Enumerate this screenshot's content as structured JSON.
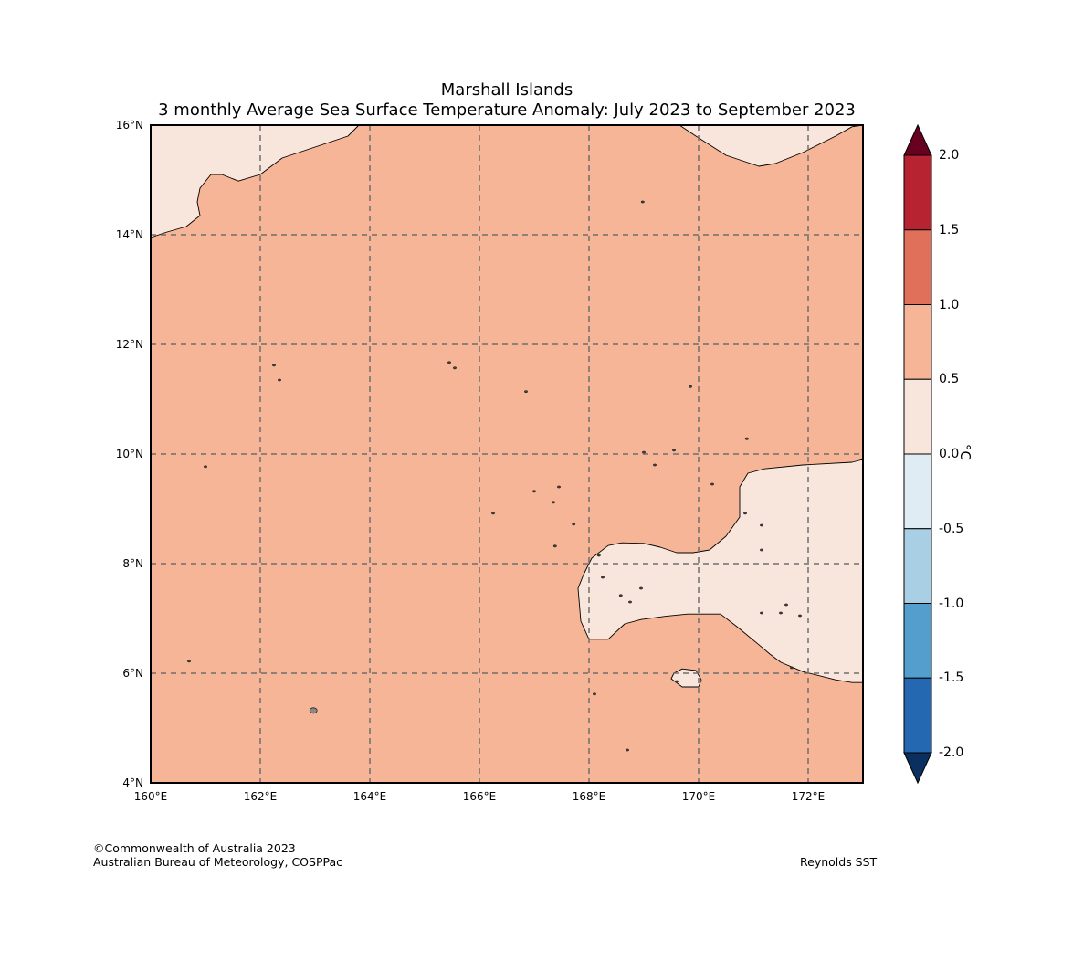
{
  "title": {
    "line1": "Marshall Islands",
    "line2": "3 monthly Average Sea Surface Temperature Anomaly: July 2023 to September 2023"
  },
  "map": {
    "lon_range": [
      160,
      173
    ],
    "lat_range": [
      4,
      16
    ],
    "lon_ticks": [
      {
        "value": 160,
        "label": "160°E"
      },
      {
        "value": 162,
        "label": "162°E"
      },
      {
        "value": 164,
        "label": "164°E"
      },
      {
        "value": 166,
        "label": "166°E"
      },
      {
        "value": 168,
        "label": "168°E"
      },
      {
        "value": 170,
        "label": "170°E"
      },
      {
        "value": 172,
        "label": "172°E"
      }
    ],
    "lat_ticks": [
      {
        "value": 4,
        "label": "4°N"
      },
      {
        "value": 6,
        "label": "6°N"
      },
      {
        "value": 8,
        "label": "8°N"
      },
      {
        "value": 10,
        "label": "10°N"
      },
      {
        "value": 12,
        "label": "12°N"
      },
      {
        "value": 14,
        "label": "14°N"
      },
      {
        "value": 16,
        "label": "16°N"
      }
    ],
    "gridlines": "dashed",
    "background_color": "#f5b596",
    "background_anomaly_band": "0.5 to 1.0",
    "region_color": "#f8e6dc",
    "region_anomaly_band": "0.0 to 0.5",
    "regions": [
      {
        "name": "northwest-low-anomaly-region",
        "points": [
          [
            160.0,
            16.0
          ],
          [
            163.8,
            16.0
          ],
          [
            163.6,
            15.8
          ],
          [
            163.0,
            15.6
          ],
          [
            162.4,
            15.4
          ],
          [
            162.0,
            15.1
          ],
          [
            161.6,
            14.98
          ],
          [
            161.3,
            15.1
          ],
          [
            161.1,
            15.1
          ],
          [
            160.9,
            14.85
          ],
          [
            160.85,
            14.6
          ],
          [
            160.9,
            14.35
          ],
          [
            160.65,
            14.15
          ],
          [
            160.3,
            14.05
          ],
          [
            160.0,
            13.95
          ]
        ]
      },
      {
        "name": "northeast-low-anomaly-region",
        "points": [
          [
            169.65,
            16.0
          ],
          [
            169.95,
            15.8
          ],
          [
            170.5,
            15.45
          ],
          [
            171.1,
            15.25
          ],
          [
            171.4,
            15.3
          ],
          [
            171.9,
            15.5
          ],
          [
            172.5,
            15.8
          ],
          [
            172.8,
            15.97
          ],
          [
            173.0,
            16.0
          ]
        ]
      },
      {
        "name": "southeast-low-anomaly-region",
        "points": [
          [
            173.0,
            9.9
          ],
          [
            172.8,
            9.85
          ],
          [
            171.9,
            9.8
          ],
          [
            171.2,
            9.73
          ],
          [
            170.9,
            9.65
          ],
          [
            170.75,
            9.4
          ],
          [
            170.75,
            8.85
          ],
          [
            170.5,
            8.5
          ],
          [
            170.2,
            8.25
          ],
          [
            169.9,
            8.2
          ],
          [
            169.6,
            8.2
          ],
          [
            169.3,
            8.3
          ],
          [
            169.0,
            8.37
          ],
          [
            168.6,
            8.38
          ],
          [
            168.35,
            8.33
          ],
          [
            168.05,
            8.1
          ],
          [
            167.9,
            7.8
          ],
          [
            167.8,
            7.55
          ],
          [
            167.85,
            6.95
          ],
          [
            168.0,
            6.62
          ],
          [
            168.35,
            6.62
          ],
          [
            168.65,
            6.9
          ],
          [
            168.95,
            6.98
          ],
          [
            169.4,
            7.04
          ],
          [
            169.8,
            7.08
          ],
          [
            170.4,
            7.08
          ],
          [
            170.7,
            6.85
          ],
          [
            171.1,
            6.52
          ],
          [
            171.3,
            6.35
          ],
          [
            171.5,
            6.2
          ],
          [
            171.9,
            6.03
          ],
          [
            172.5,
            5.88
          ],
          [
            172.8,
            5.83
          ],
          [
            173.0,
            5.83
          ]
        ]
      },
      {
        "name": "atoll-low-anomaly-patch",
        "points": [
          [
            169.5,
            5.9
          ],
          [
            169.7,
            5.75
          ],
          [
            170.0,
            5.75
          ],
          [
            170.05,
            5.88
          ],
          [
            169.95,
            6.05
          ],
          [
            169.7,
            6.08
          ],
          [
            169.55,
            6.0
          ]
        ]
      }
    ],
    "islands": [
      {
        "name": "kosrae-island",
        "lon": 162.97,
        "lat": 5.32
      },
      {
        "name": "atoll",
        "lon": 161.0,
        "lat": 9.77
      },
      {
        "name": "atoll",
        "lon": 160.7,
        "lat": 6.22
      },
      {
        "name": "atoll",
        "lon": 162.25,
        "lat": 11.62
      },
      {
        "name": "atoll",
        "lon": 162.35,
        "lat": 11.35
      },
      {
        "name": "atoll",
        "lon": 165.45,
        "lat": 11.67
      },
      {
        "name": "atoll",
        "lon": 165.55,
        "lat": 11.57
      },
      {
        "name": "atoll",
        "lon": 166.85,
        "lat": 11.14
      },
      {
        "name": "atoll",
        "lon": 168.98,
        "lat": 14.6
      },
      {
        "name": "atoll",
        "lon": 169.85,
        "lat": 11.23
      },
      {
        "name": "atoll",
        "lon": 170.88,
        "lat": 10.28
      },
      {
        "name": "atoll",
        "lon": 169.0,
        "lat": 10.03
      },
      {
        "name": "atoll",
        "lon": 169.2,
        "lat": 9.8
      },
      {
        "name": "atoll",
        "lon": 169.55,
        "lat": 10.07
      },
      {
        "name": "atoll",
        "lon": 170.25,
        "lat": 9.45
      },
      {
        "name": "atoll",
        "lon": 167.45,
        "lat": 9.4
      },
      {
        "name": "atoll",
        "lon": 167.0,
        "lat": 9.32
      },
      {
        "name": "atoll",
        "lon": 167.35,
        "lat": 9.12
      },
      {
        "name": "atoll",
        "lon": 166.25,
        "lat": 8.92
      },
      {
        "name": "atoll",
        "lon": 167.72,
        "lat": 8.72
      },
      {
        "name": "atoll",
        "lon": 167.38,
        "lat": 8.32
      },
      {
        "name": "atoll",
        "lon": 168.18,
        "lat": 8.15
      },
      {
        "name": "atoll",
        "lon": 168.25,
        "lat": 7.75
      },
      {
        "name": "atoll",
        "lon": 168.58,
        "lat": 7.42
      },
      {
        "name": "atoll",
        "lon": 168.75,
        "lat": 7.3
      },
      {
        "name": "atoll",
        "lon": 168.95,
        "lat": 7.55
      },
      {
        "name": "atoll",
        "lon": 171.15,
        "lat": 7.1
      },
      {
        "name": "atoll",
        "lon": 171.5,
        "lat": 7.1
      },
      {
        "name": "atoll",
        "lon": 171.6,
        "lat": 7.25
      },
      {
        "name": "atoll",
        "lon": 171.85,
        "lat": 7.05
      },
      {
        "name": "atoll",
        "lon": 171.15,
        "lat": 8.7
      },
      {
        "name": "atoll",
        "lon": 171.15,
        "lat": 8.25
      },
      {
        "name": "atoll",
        "lon": 170.85,
        "lat": 8.92
      },
      {
        "name": "atoll",
        "lon": 169.6,
        "lat": 5.85
      },
      {
        "name": "atoll",
        "lon": 168.1,
        "lat": 5.62
      },
      {
        "name": "atoll",
        "lon": 168.7,
        "lat": 4.6
      },
      {
        "name": "atoll",
        "lon": 171.7,
        "lat": 6.1
      }
    ]
  },
  "colorbar": {
    "unit": "°C",
    "labels": [
      "2.0",
      "1.5",
      "1.0",
      "0.5",
      "0.0",
      "-0.5",
      "-1.0",
      "-1.5",
      "-2.0"
    ],
    "bands": [
      {
        "range": "1.5 to 2.0",
        "color": "#b72330"
      },
      {
        "range": "1.0 to 1.5",
        "color": "#e0705a"
      },
      {
        "range": "0.5 to 1.0",
        "color": "#f5b596"
      },
      {
        "range": "0.0 to 0.5",
        "color": "#f8e6dc"
      },
      {
        "range": "-0.5 to 0.0",
        "color": "#e0ecf3"
      },
      {
        "range": "-1.0 to -0.5",
        "color": "#a8cfe4"
      },
      {
        "range": "-1.5 to -1.0",
        "color": "#539ecd"
      },
      {
        "range": "-2.0 to -1.5",
        "color": "#2368b0"
      }
    ],
    "extend_max_color": "#68001f",
    "extend_min_color": "#0a3060"
  },
  "footer": {
    "copyright": "©Commonwealth of Australia 2023",
    "agency": "Australian Bureau of Meteorology, COSPPac",
    "source": "Reynolds SST"
  }
}
